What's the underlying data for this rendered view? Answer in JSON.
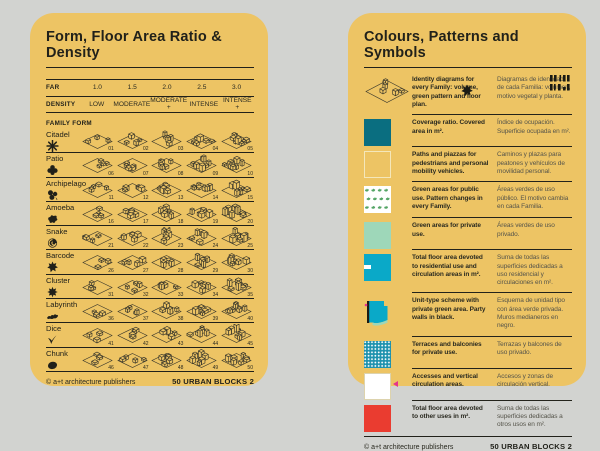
{
  "page_bg": "#d2d3d0",
  "card_bg": "#edc464",
  "colors": {
    "ink": "#21211a",
    "muted_text": "#55544a",
    "teal": "#0a6e80",
    "cyan": "#0aa9c8",
    "dotted_teal": "#1e92ae",
    "light_green": "#9ed7b9",
    "leaf_green": "#55a566",
    "red": "#ea3c30",
    "magenta": "#e5358b"
  },
  "left_card": {
    "title": "Form, Floor Area Ratio & Density",
    "far_label": "FAR",
    "far_values": [
      "1.0",
      "1.5",
      "2.0",
      "2.5",
      "3.0"
    ],
    "density_label": "DENSITY",
    "density_values": [
      "LOW",
      "MODERATE",
      "MODERATE +",
      "INTENSE",
      "INTENSE +"
    ],
    "family_form_label": "FAMILY FORM",
    "families": [
      {
        "name": "Citadel",
        "icon": "citadel",
        "numbers": [
          "01",
          "02",
          "03",
          "04",
          "05"
        ]
      },
      {
        "name": "Patio",
        "icon": "patio",
        "numbers": [
          "06",
          "07",
          "08",
          "09",
          "10"
        ]
      },
      {
        "name": "Archipelago",
        "icon": "archipelago",
        "numbers": [
          "11",
          "12",
          "13",
          "14",
          "15"
        ]
      },
      {
        "name": "Amoeba",
        "icon": "amoeba",
        "numbers": [
          "16",
          "17",
          "18",
          "19",
          "20"
        ]
      },
      {
        "name": "Snake",
        "icon": "snake",
        "numbers": [
          "21",
          "22",
          "23",
          "24",
          "25"
        ]
      },
      {
        "name": "Barcode",
        "icon": "barcode",
        "numbers": [
          "26",
          "27",
          "28",
          "29",
          "30"
        ]
      },
      {
        "name": "Cluster",
        "icon": "cluster",
        "numbers": [
          "31",
          "32",
          "33",
          "34",
          "35"
        ]
      },
      {
        "name": "Labyrinth",
        "icon": "labyrinth",
        "numbers": [
          "36",
          "37",
          "38",
          "39",
          "40"
        ]
      },
      {
        "name": "Dice",
        "icon": "dice",
        "numbers": [
          "41",
          "42",
          "43",
          "44",
          "45"
        ]
      },
      {
        "name": "Chunk",
        "icon": "chunk",
        "numbers": [
          "46",
          "47",
          "48",
          "49",
          "50"
        ]
      }
    ],
    "footer_left": "© a+t architecture publishers",
    "footer_right": "50 URBAN BLOCKS 2"
  },
  "right_card": {
    "title": "Colours, Patterns and Symbols",
    "legend": [
      {
        "swatch": "identity",
        "icons": [
          "volume-iso-icon",
          "leaf-icon",
          "floorplan-icon"
        ],
        "en": "Identity diagrams for every Family: volume, green pattern and floor plan.",
        "es": "Diagramas de identidad de cada Familia: volumen, motivo vegetal y planta."
      },
      {
        "swatch": "solid",
        "color": "#0a6e80",
        "en": "Coverage ratio. Covered area in m².",
        "es": "Índice de ocupación. Superficie ocupada en m²."
      },
      {
        "swatch": "paths",
        "color": "#edc464",
        "en": "Paths and piazzas for pedestrians and personal mobility vehicles.",
        "es": "Caminos y plazas para peatones y vehículos de movilidad personal."
      },
      {
        "swatch": "leafpattern",
        "color": "#55a566",
        "en": "Green areas for public use. Pattern changes in every Family.",
        "es": "Áreas verdes de uso público. El motivo cambia en cada Familia."
      },
      {
        "swatch": "solid",
        "color": "#9ed7b9",
        "en": "Green areas for private use.",
        "es": "Áreas verdes de uso privado."
      },
      {
        "swatch": "cyan-notch",
        "color": "#0aa9c8",
        "en": "Total floor area devoted to residential use and circulation areas in m².",
        "es": "Suma de todas las superficies dedicadas a uso residencial y circulaciones en m²."
      },
      {
        "swatch": "unit",
        "color": "#0aa9c8",
        "en": "Unit-type scheme with private green area. Party walls in black.",
        "es": "Esquema de unidad tipo con área verde privada. Muros medianeros en negro."
      },
      {
        "swatch": "dots",
        "color": "#1e92ae",
        "en": "Terraces and balconies for private use.",
        "es": "Terrazas y balcones de uso privado."
      },
      {
        "swatch": "white-arrow",
        "color": "#ffffff",
        "en": "Accesses and vertical circulation areas.",
        "es": "Accesos y zonas de circulación vertical."
      },
      {
        "swatch": "solid",
        "color": "#ea3c30",
        "en": "Total floor area devoted to other uses in m².",
        "es": "Suma de todas las superficies dedicadas a otros usos en m²."
      }
    ],
    "footer_left": "© a+t architecture publishers",
    "footer_right": "50 URBAN BLOCKS 2"
  }
}
